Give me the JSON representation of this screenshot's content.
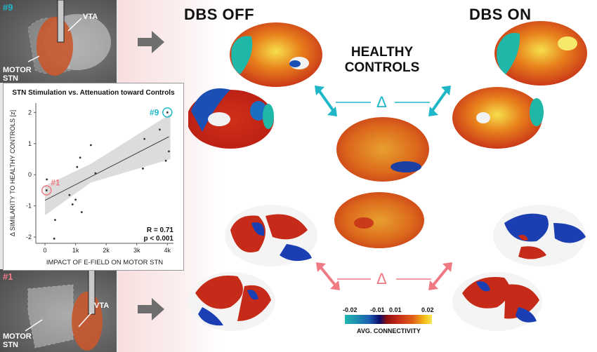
{
  "panels": {
    "top_tag": "#9",
    "bottom_tag": "#1",
    "vta_label": "VTA",
    "motor_label_line1": "MOTOR",
    "motor_label_line2": "STN"
  },
  "headings": {
    "dbs_off": "DBS OFF",
    "dbs_on": "DBS ON",
    "healthy_line1": "HEALTHY",
    "healthy_line2": "CONTROLS"
  },
  "delta_symbol": "Δ",
  "colorbar": {
    "ticks": [
      "-0.02",
      "-0.01",
      "0.01",
      "0.02"
    ],
    "label": "AVG. CONNECTIVITY"
  },
  "colors": {
    "cyan": "#1fb7c8",
    "pink": "#f07a84",
    "arrow_grey": "#6e6e6e"
  },
  "chart_data": {
    "type": "scatter",
    "title": "STN Stimulation vs. Attenuation toward Controls",
    "xlabel": "IMPACT OF E-FIELD ON MOTOR STN",
    "ylabel": "Δ SIMILARITY TO HEALTHY CONTROLS [z]",
    "xlim": [
      -300,
      4200
    ],
    "ylim": [
      -2.2,
      2.3
    ],
    "xticks": [
      0,
      1000,
      2000,
      3000,
      4000
    ],
    "xtick_labels": [
      "0",
      "1k",
      "2k",
      "3k",
      "4k"
    ],
    "yticks": [
      -2,
      -1,
      0,
      1,
      2
    ],
    "yticks_labels": [
      "-2",
      "-1",
      "0",
      "1",
      "2"
    ],
    "points": [
      {
        "x": 50,
        "y": -0.5
      },
      {
        "x": 60,
        "y": -0.15
      },
      {
        "x": 300,
        "y": -2.05
      },
      {
        "x": 330,
        "y": -1.45
      },
      {
        "x": 800,
        "y": -0.65
      },
      {
        "x": 900,
        "y": -0.95
      },
      {
        "x": 1000,
        "y": -0.8
      },
      {
        "x": 1050,
        "y": 0.25
      },
      {
        "x": 1150,
        "y": 0.55
      },
      {
        "x": 1200,
        "y": -1.2
      },
      {
        "x": 1500,
        "y": 0.95
      },
      {
        "x": 1650,
        "y": 0.05
      },
      {
        "x": 3200,
        "y": 0.2
      },
      {
        "x": 3250,
        "y": 1.15
      },
      {
        "x": 3750,
        "y": 1.45
      },
      {
        "x": 3950,
        "y": 0.45
      },
      {
        "x": 4050,
        "y": 0.75
      },
      {
        "x": 4000,
        "y": 2.0
      }
    ],
    "fit": {
      "x0": 0,
      "y0": -0.82,
      "x1": 4050,
      "y1": 1.22
    },
    "annotations": [
      {
        "text": "#1",
        "x": 50,
        "y": -0.5,
        "color": "#f07a84"
      },
      {
        "text": "#9",
        "x": 4000,
        "y": 2.0,
        "color": "#1fb7c8"
      }
    ],
    "stats_r": "R = 0.71",
    "stats_p": "p < 0.001"
  }
}
